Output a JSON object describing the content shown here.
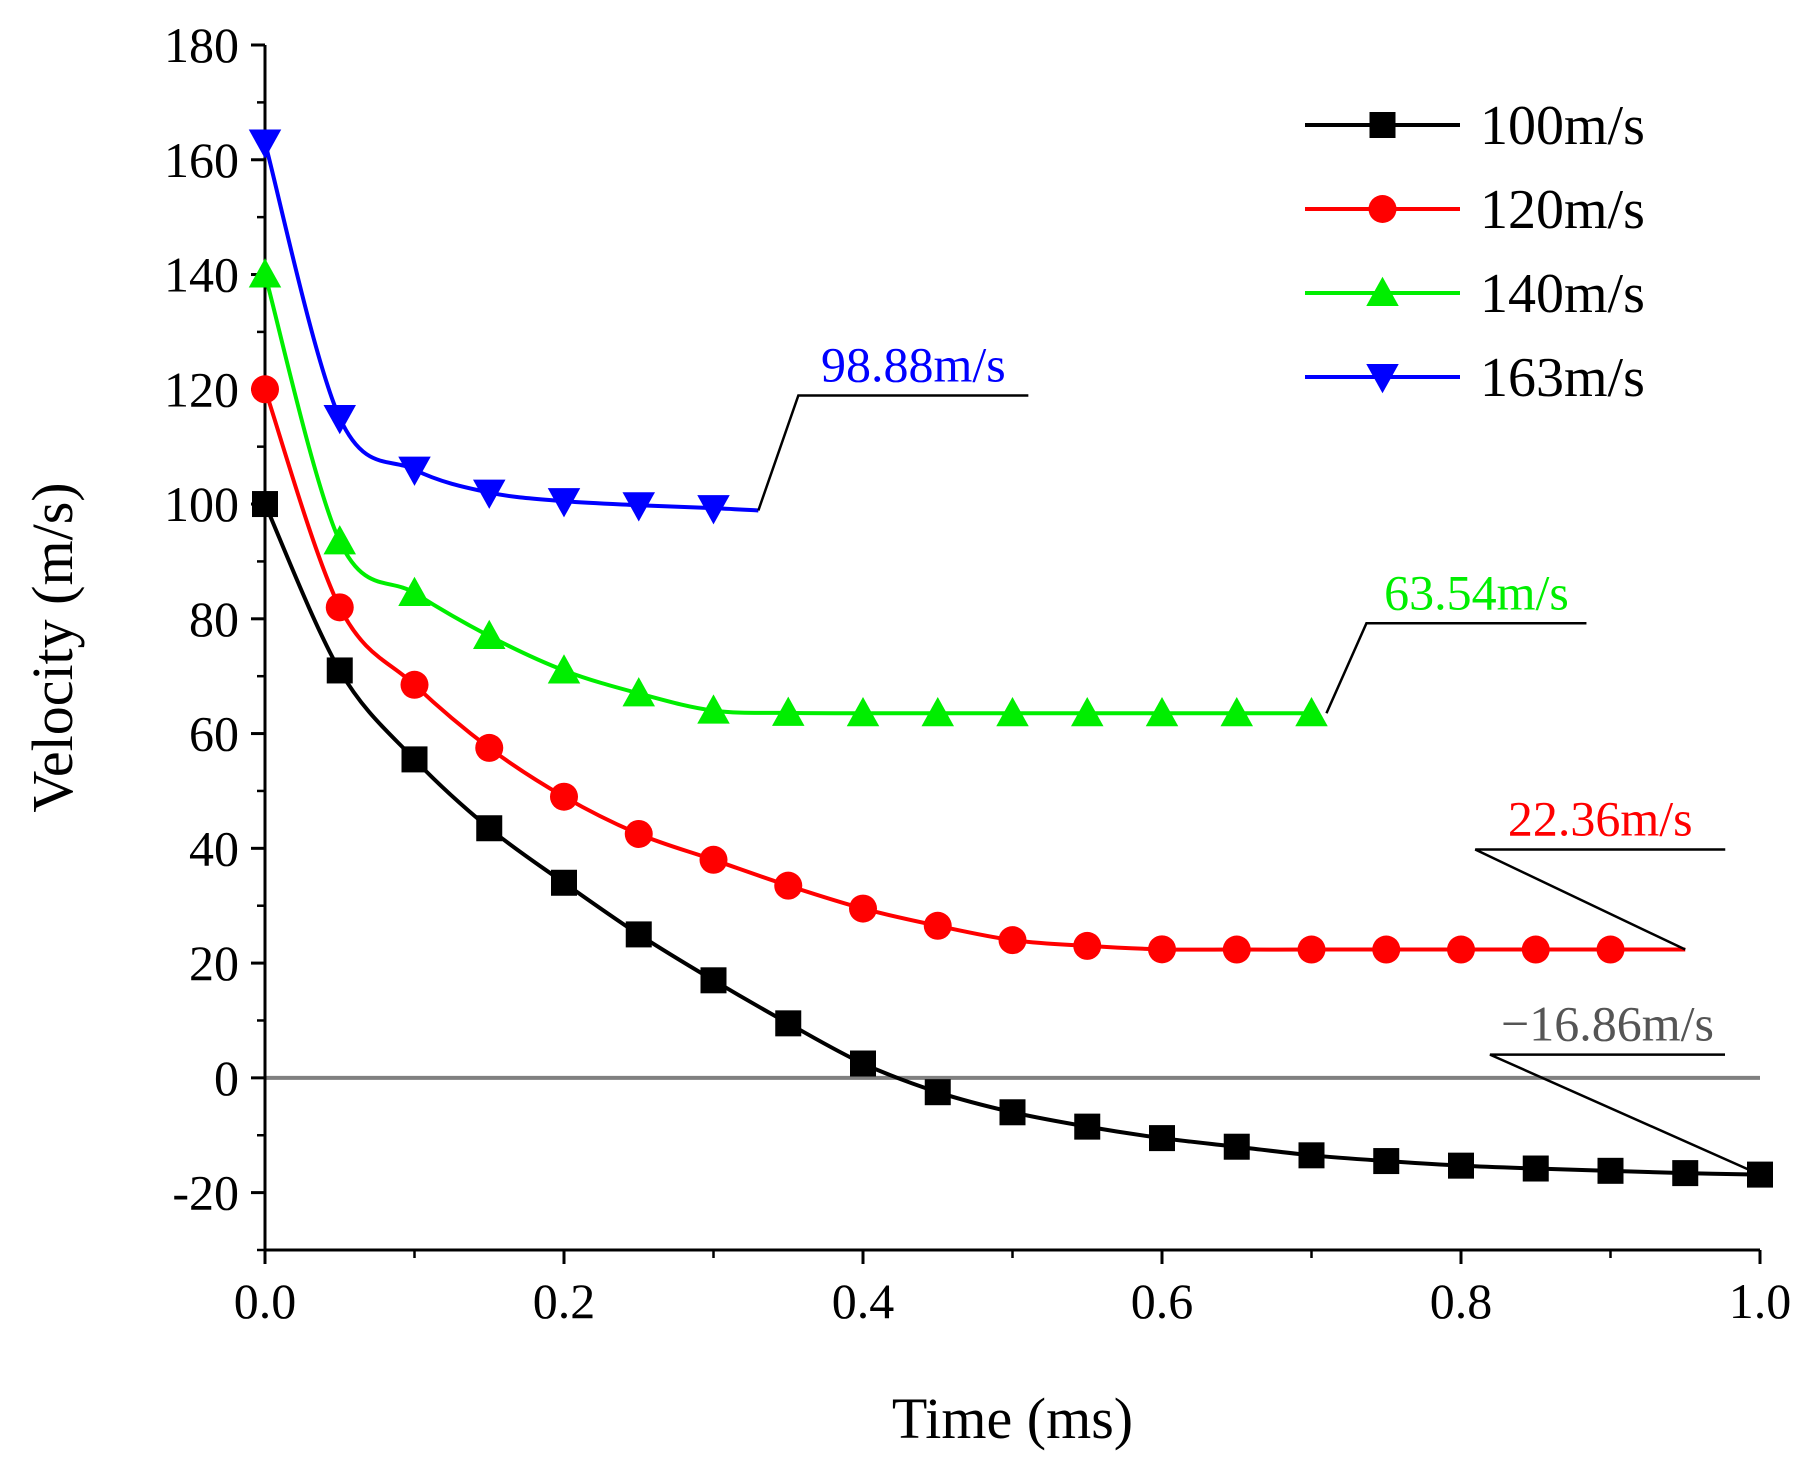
{
  "chart_data": {
    "type": "line",
    "xlabel": "Time (ms)",
    "ylabel": "Velocity (m/s)",
    "xlim": [
      0,
      1.0
    ],
    "ylim": [
      -30,
      180
    ],
    "xticks": [
      "0.0",
      "0.2",
      "0.4",
      "0.6",
      "0.8",
      "1.0"
    ],
    "yticks": [
      "-20",
      "0",
      "20",
      "40",
      "60",
      "80",
      "100",
      "120",
      "140",
      "160",
      "180"
    ],
    "grid": false,
    "legend_position": "top-right",
    "zero_line": true,
    "series": [
      {
        "name": "100m/s",
        "color": "#000000",
        "marker": "square",
        "x": [
          0.0,
          0.05,
          0.1,
          0.15,
          0.2,
          0.25,
          0.3,
          0.35,
          0.4,
          0.45,
          0.5,
          0.55,
          0.6,
          0.65,
          0.7,
          0.75,
          0.8,
          0.85,
          0.9,
          0.95,
          1.0
        ],
        "y": [
          100,
          71,
          55.5,
          43.5,
          34,
          25,
          17,
          9.5,
          2.5,
          -2.5,
          -6,
          -8.5,
          -10.5,
          -12,
          -13.5,
          -14.5,
          -15.3,
          -15.8,
          -16.2,
          -16.6,
          -16.86
        ]
      },
      {
        "name": "120m/s",
        "color": "#ff0000",
        "marker": "circle",
        "x": [
          0.0,
          0.05,
          0.1,
          0.15,
          0.2,
          0.25,
          0.3,
          0.35,
          0.4,
          0.45,
          0.5,
          0.55,
          0.6,
          0.65,
          0.7,
          0.75,
          0.8,
          0.85,
          0.9,
          0.95
        ],
        "y": [
          120,
          82,
          68.5,
          57.5,
          49,
          42.5,
          38,
          33.5,
          29.5,
          26.5,
          24,
          23,
          22.4,
          22.36,
          22.36,
          22.36,
          22.36,
          22.36,
          22.36,
          22.36
        ],
        "markers_until": 0.9
      },
      {
        "name": "140m/s",
        "color": "#00ee00",
        "marker": "triangle-up",
        "x": [
          0.0,
          0.05,
          0.1,
          0.15,
          0.2,
          0.25,
          0.3,
          0.35,
          0.4,
          0.45,
          0.5,
          0.55,
          0.6,
          0.65,
          0.7
        ],
        "y": [
          140,
          93.5,
          84.5,
          77,
          71,
          67,
          64,
          63.6,
          63.54,
          63.54,
          63.54,
          63.54,
          63.54,
          63.54,
          63.54
        ]
      },
      {
        "name": "163m/s",
        "color": "#0000ff",
        "marker": "triangle-down",
        "x": [
          0.0,
          0.05,
          0.1,
          0.15,
          0.2,
          0.25,
          0.3,
          0.33
        ],
        "y": [
          163,
          115,
          106,
          102,
          100.5,
          99.8,
          99.3,
          98.88
        ],
        "markers_until": 0.3
      }
    ],
    "annotations": [
      {
        "text": "98.88m/s",
        "color": "#0000ff",
        "x": 0.33,
        "y": 98.88
      },
      {
        "text": "63.54m/s",
        "color": "#00ee00",
        "x": 0.71,
        "y": 63.54
      },
      {
        "text": "22.36m/s",
        "color": "#ff0000",
        "x": 0.95,
        "y": 22.36
      },
      {
        "text": "−16.86m/s",
        "color": "#555555",
        "x": 1.0,
        "y": -16.86
      }
    ]
  }
}
